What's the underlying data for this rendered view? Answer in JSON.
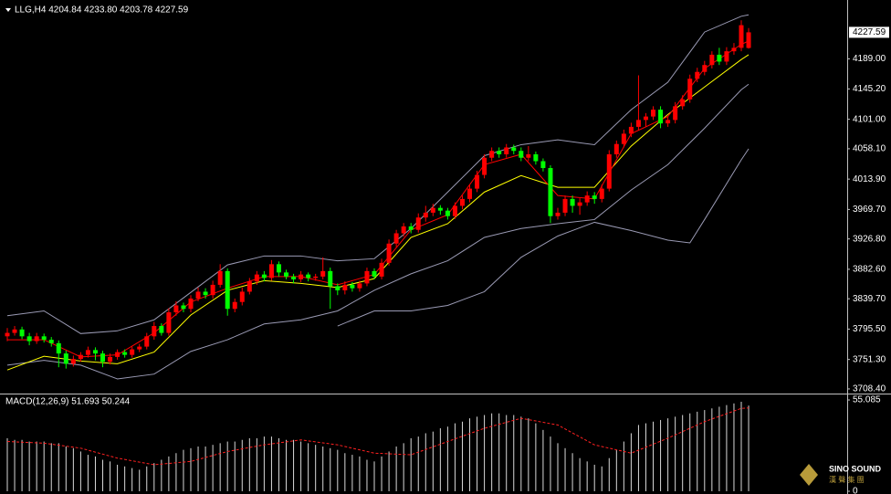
{
  "chart_data": [
    {
      "type": "candlestick",
      "title": "LLG,H4  4204.84 4233.80 4203.78 4227.59",
      "ylim": [
        3703,
        4272
      ],
      "yticks": [
        {
          "value": 4189.0,
          "label": "4189.00"
        },
        {
          "value": 4145.2,
          "label": "4145.20"
        },
        {
          "value": 4101.0,
          "label": "4101.00"
        },
        {
          "value": 4058.1,
          "label": "4058.10"
        },
        {
          "value": 4013.9,
          "label": "4013.90"
        },
        {
          "value": 3969.7,
          "label": "3969.70"
        },
        {
          "value": 3926.8,
          "label": "3926.80"
        },
        {
          "value": 3882.6,
          "label": "3882.60"
        },
        {
          "value": 3839.7,
          "label": "3839.70"
        },
        {
          "value": 3795.5,
          "label": "3795.50"
        },
        {
          "value": 3751.3,
          "label": "3751.30"
        },
        {
          "value": 3708.4,
          "label": "3708.40"
        }
      ],
      "current_price": {
        "value": 4227.59,
        "label": "4227.59"
      },
      "up_color": "#ff0000",
      "down_color": "#00ff00",
      "open": [
        3785,
        3790,
        3795,
        3785,
        3778,
        3785,
        3780,
        3775,
        3760,
        3745,
        3752,
        3758,
        3765,
        3760,
        3748,
        3755,
        3762,
        3758,
        3766,
        3770,
        3785,
        3800,
        3790,
        3820,
        3830,
        3825,
        3840,
        3850,
        3845,
        3860,
        3880,
        3825,
        3835,
        3850,
        3865,
        3875,
        3870,
        3890,
        3878,
        3872,
        3868,
        3875,
        3870,
        3872,
        3880,
        3858,
        3852,
        3860,
        3855,
        3862,
        3880,
        3872,
        3892,
        3920,
        3935,
        3945,
        3940,
        3958,
        3965,
        3972,
        3968,
        3960,
        3975,
        3985,
        4000,
        4020,
        4045,
        4055,
        4050,
        4060,
        4055,
        4045,
        4050,
        4040,
        4030,
        3960,
        3965,
        3985,
        3975,
        3980,
        3990,
        3985,
        4000,
        4050,
        4065,
        4080,
        4090,
        4100,
        4105,
        4115,
        4095,
        4100,
        4120,
        4130,
        4160,
        4170,
        4180,
        4195,
        4185,
        4200,
        4205,
        4204.84
      ],
      "high": [
        3797,
        3800,
        3799,
        3790,
        3790,
        3789,
        3784,
        3779,
        3764,
        3757,
        3762,
        3770,
        3769,
        3764,
        3760,
        3766,
        3766,
        3770,
        3774,
        3790,
        3806,
        3804,
        3826,
        3836,
        3834,
        3845,
        3856,
        3855,
        3866,
        3890,
        3884,
        3840,
        3856,
        3870,
        3880,
        3880,
        3896,
        3894,
        3882,
        3876,
        3880,
        3878,
        3876,
        3900,
        3885,
        3862,
        3865,
        3864,
        3866,
        3885,
        3884,
        3898,
        3926,
        3940,
        3950,
        3950,
        3964,
        3975,
        3978,
        3976,
        3972,
        3980,
        3990,
        4006,
        4026,
        4050,
        4060,
        4060,
        4065,
        4064,
        4060,
        4062,
        4054,
        4044,
        4034,
        3972,
        3990,
        3990,
        3986,
        3996,
        3995,
        4006,
        4056,
        4070,
        4086,
        4096,
        4165,
        4110,
        4120,
        4120,
        4106,
        4126,
        4136,
        4166,
        4176,
        4186,
        4200,
        4205,
        4206,
        4212,
        4245,
        4233.8
      ],
      "low": [
        3778,
        3786,
        3781,
        3772,
        3774,
        3776,
        3770,
        3740,
        3738,
        3741,
        3748,
        3754,
        3750,
        3740,
        3744,
        3751,
        3754,
        3754,
        3762,
        3766,
        3780,
        3786,
        3786,
        3815,
        3820,
        3820,
        3836,
        3840,
        3840,
        3856,
        3815,
        3820,
        3830,
        3846,
        3860,
        3865,
        3866,
        3872,
        3868,
        3862,
        3864,
        3865,
        3866,
        3868,
        3825,
        3845,
        3846,
        3850,
        3850,
        3858,
        3868,
        3868,
        3888,
        3915,
        3930,
        3935,
        3936,
        3952,
        3960,
        3962,
        3955,
        3956,
        3970,
        3980,
        3995,
        4015,
        4040,
        4045,
        4045,
        4050,
        4040,
        4040,
        4035,
        4025,
        3950,
        3955,
        3960,
        3965,
        3962,
        3975,
        3978,
        3980,
        3996,
        4045,
        4060,
        4075,
        4085,
        4090,
        4100,
        4088,
        4090,
        4095,
        4115,
        4125,
        4155,
        4165,
        4175,
        4180,
        4180,
        4195,
        4200,
        4203.78
      ],
      "close": [
        3790,
        3795,
        3785,
        3778,
        3785,
        3780,
        3775,
        3760,
        3745,
        3752,
        3758,
        3765,
        3760,
        3748,
        3755,
        3762,
        3758,
        3766,
        3770,
        3785,
        3800,
        3790,
        3820,
        3830,
        3825,
        3840,
        3850,
        3845,
        3860,
        3880,
        3825,
        3835,
        3850,
        3865,
        3875,
        3870,
        3890,
        3878,
        3872,
        3868,
        3875,
        3870,
        3872,
        3880,
        3858,
        3852,
        3860,
        3855,
        3862,
        3880,
        3872,
        3892,
        3920,
        3935,
        3945,
        3940,
        3958,
        3965,
        3972,
        3968,
        3960,
        3975,
        3985,
        4000,
        4020,
        4045,
        4055,
        4050,
        4060,
        4055,
        4045,
        4050,
        4040,
        4030,
        3960,
        3965,
        3985,
        3975,
        3980,
        3990,
        3985,
        4000,
        4050,
        4065,
        4080,
        4090,
        4100,
        4105,
        4115,
        4095,
        4100,
        4120,
        4130,
        4160,
        4170,
        4180,
        4195,
        4185,
        4200,
        4205,
        4238,
        4227.59
      ],
      "lines": [
        {
          "color": "#9a9ab4",
          "x": [
            0,
            5,
            10,
            15,
            20,
            25,
            30,
            35,
            40,
            45,
            50,
            55,
            60,
            65,
            70,
            75,
            80,
            85,
            90,
            95,
            100,
            101
          ],
          "values": [
            3815,
            3822,
            3789,
            3793,
            3809,
            3849,
            3889,
            3902,
            3902,
            3895,
            3898,
            3942,
            3995,
            4048,
            4064,
            4071,
            4064,
            4115,
            4155,
            4228,
            4251,
            4253
          ]
        },
        {
          "color": "#9a9ab4",
          "x": [
            0,
            5,
            10,
            15,
            20,
            25,
            30,
            35,
            40,
            45,
            50,
            55,
            60,
            65,
            70,
            75,
            80,
            85,
            90,
            95,
            100,
            101
          ],
          "values": [
            3743,
            3750,
            3743,
            3723,
            3730,
            3763,
            3780,
            3803,
            3809,
            3822,
            3852,
            3876,
            3895,
            3929,
            3942,
            3949,
            3955,
            3998,
            4035,
            4088,
            4144,
            4152
          ]
        },
        {
          "color": "#9a9ab4",
          "x": [
            45,
            50,
            55,
            60,
            65,
            70,
            75,
            80,
            85,
            90,
            93,
            95,
            100,
            101
          ],
          "values": [
            3800,
            3822,
            3822,
            3830,
            3850,
            3900,
            3931,
            3951,
            3939,
            3925,
            3921,
            3955,
            4042,
            4058
          ]
        },
        {
          "color": "#ffff00",
          "x": [
            0,
            5,
            10,
            15,
            20,
            25,
            30,
            35,
            40,
            45,
            50,
            55,
            60,
            65,
            70,
            75,
            80,
            85,
            90,
            95,
            100,
            101
          ],
          "values": [
            3736,
            3756,
            3749,
            3745,
            3762,
            3816,
            3852,
            3866,
            3862,
            3856,
            3869,
            3929,
            3949,
            3995,
            4019,
            4002,
            4002,
            4062,
            4108,
            4148,
            4188,
            4195
          ]
        },
        {
          "color": "#ff0000",
          "x": [
            0,
            5,
            10,
            15,
            20,
            25,
            30,
            35,
            40,
            45,
            50,
            55,
            60,
            65,
            70,
            75,
            80,
            85,
            90,
            95,
            100,
            101
          ],
          "values": [
            3780,
            3780,
            3755,
            3758,
            3790,
            3835,
            3855,
            3872,
            3872,
            3860,
            3875,
            3940,
            3962,
            4035,
            4050,
            3990,
            3985,
            4080,
            4105,
            4175,
            4210,
            4215
          ]
        }
      ]
    },
    {
      "type": "bar",
      "title": "MACD(12,26,9) 51.693 50.244",
      "ylim": [
        -1.1,
        58.4
      ],
      "yticks": [
        55.085,
        0
      ],
      "color": "#d8d8d8",
      "values": [
        32,
        31,
        31,
        30,
        30,
        30,
        29,
        29,
        27,
        26,
        24,
        22,
        21,
        19,
        18,
        16,
        15,
        14,
        13,
        15,
        17,
        19,
        21,
        23,
        25,
        26,
        27,
        27,
        28,
        29,
        30,
        30,
        31,
        32,
        32,
        33,
        33,
        32,
        31,
        31,
        30,
        29,
        28,
        27,
        26,
        25,
        23,
        22,
        21,
        19,
        18,
        21,
        24,
        27,
        29,
        32,
        33,
        35,
        36,
        38,
        39,
        41,
        42,
        44,
        45,
        46,
        47,
        47,
        46,
        46,
        45,
        44,
        41,
        37,
        33,
        29,
        26,
        23,
        20,
        18,
        16,
        15,
        20,
        25,
        30,
        35,
        40,
        41,
        42,
        43,
        44,
        45,
        46,
        47,
        48,
        49,
        50,
        51,
        52,
        53,
        54,
        51.693
      ],
      "signal": {
        "color": "#ff2020",
        "x": [
          0,
          5,
          10,
          15,
          20,
          25,
          30,
          35,
          40,
          45,
          50,
          55,
          60,
          65,
          70,
          75,
          80,
          85,
          90,
          95,
          100,
          101
        ],
        "values": [
          30,
          29,
          26,
          20,
          16,
          18,
          24,
          28,
          31,
          28,
          23,
          22,
          30,
          38,
          44,
          40,
          28,
          23,
          32,
          42,
          50,
          50.244
        ]
      }
    }
  ],
  "watermark": {
    "name": "SINO SOUND",
    "subtitle": "漢 聲 集 團"
  }
}
